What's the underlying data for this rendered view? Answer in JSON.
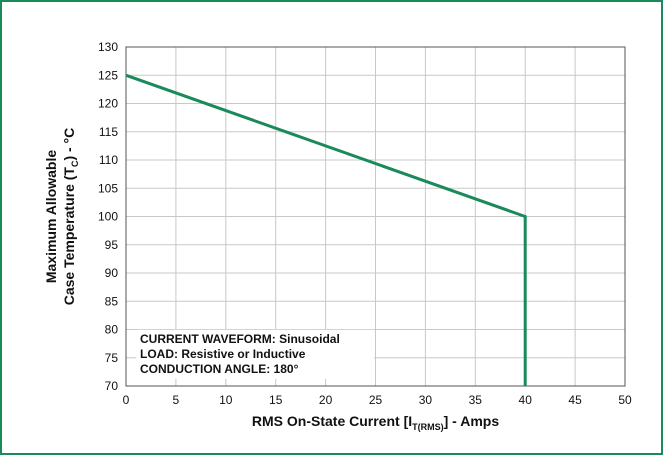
{
  "chart_data": {
    "type": "line",
    "xlabel": {
      "main": "RMS On-State Current [I",
      "sub": "T(RMS)",
      "tail": "] - Amps"
    },
    "ylabel": {
      "line1": "Maximum Allowable",
      "line2_main": "Case Temperature (T",
      "line2_sub": "C",
      "line2_tail": ") - °C"
    },
    "xlim": [
      0,
      50
    ],
    "ylim": [
      70,
      130
    ],
    "x_ticks": [
      0,
      5,
      10,
      15,
      20,
      25,
      30,
      35,
      40,
      45,
      50
    ],
    "y_ticks": [
      70,
      75,
      80,
      85,
      90,
      95,
      100,
      105,
      110,
      115,
      120,
      125,
      130
    ],
    "grid": true,
    "series": [
      {
        "color": "#1a8a5a",
        "points": [
          {
            "x": 0,
            "y": 125
          },
          {
            "x": 40,
            "y": 100
          },
          {
            "x": 40,
            "y": 70
          }
        ]
      }
    ],
    "annotations": [
      "CURRENT WAVEFORM: Sinusoidal",
      "LOAD: Resistive or Inductive",
      "CONDUCTION ANGLE: 180°"
    ]
  }
}
